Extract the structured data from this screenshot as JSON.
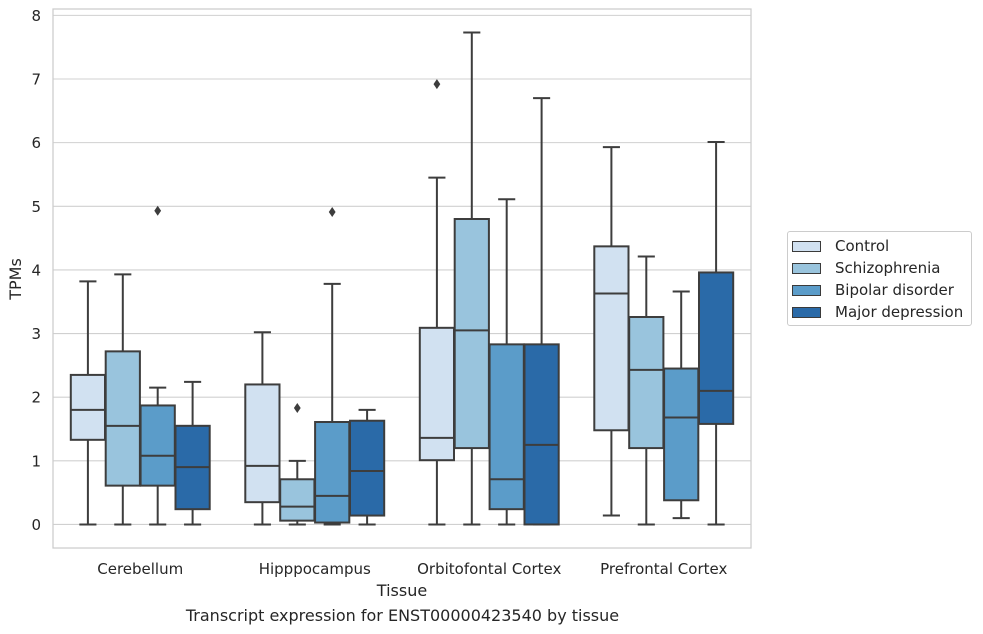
{
  "chart_data": {
    "type": "boxplot",
    "xlabel": "Tissue",
    "ylabel": "TPMs",
    "caption": "Transcript expression for ENST00000423540 by tissue",
    "ylim": [
      -0.37,
      8.1
    ],
    "yticks": [
      0,
      1,
      2,
      3,
      4,
      5,
      6,
      7,
      8
    ],
    "grid": "horizontal",
    "legend_position": "right",
    "categories": [
      "Cerebellum",
      "Hipppocampus",
      "Orbitofontal Cortex",
      "Prefrontal Cortex"
    ],
    "series": [
      {
        "name": "Control",
        "color": "#d1e1f1",
        "boxes": [
          {
            "min": 0,
            "q1": 1.33,
            "median": 1.8,
            "q3": 2.35,
            "max": 3.82,
            "outliers": []
          },
          {
            "min": 0,
            "q1": 0.35,
            "median": 0.92,
            "q3": 2.2,
            "max": 3.02,
            "outliers": []
          },
          {
            "min": 0,
            "q1": 1.01,
            "median": 1.36,
            "q3": 3.09,
            "max": 5.45,
            "outliers": [
              6.92
            ]
          },
          {
            "min": 0.14,
            "q1": 1.48,
            "median": 3.63,
            "q3": 4.37,
            "max": 5.93,
            "outliers": []
          }
        ]
      },
      {
        "name": "Schizophrenia",
        "color": "#99c4dd",
        "boxes": [
          {
            "min": 0,
            "q1": 0.61,
            "median": 1.55,
            "q3": 2.72,
            "max": 3.93,
            "outliers": []
          },
          {
            "min": 0,
            "q1": 0.06,
            "median": 0.28,
            "q3": 0.71,
            "max": 1.0,
            "outliers": [
              1.83
            ]
          },
          {
            "min": 0,
            "q1": 1.2,
            "median": 3.05,
            "q3": 4.8,
            "max": 7.73,
            "outliers": []
          },
          {
            "min": 0,
            "q1": 1.2,
            "median": 2.43,
            "q3": 3.26,
            "max": 4.21,
            "outliers": []
          }
        ]
      },
      {
        "name": "Bipolar disorder",
        "color": "#5b9cc9",
        "boxes": [
          {
            "min": 0,
            "q1": 0.61,
            "median": 1.08,
            "q3": 1.87,
            "max": 2.15,
            "outliers": [
              4.93
            ]
          },
          {
            "min": 0,
            "q1": 0.03,
            "median": 0.45,
            "q3": 1.61,
            "max": 3.78,
            "outliers": [
              4.91
            ]
          },
          {
            "min": 0,
            "q1": 0.24,
            "median": 0.71,
            "q3": 2.83,
            "max": 5.11,
            "outliers": []
          },
          {
            "min": 0.1,
            "q1": 0.38,
            "median": 1.68,
            "q3": 2.45,
            "max": 3.66,
            "outliers": []
          }
        ]
      },
      {
        "name": "Major depression",
        "color": "#2a6aa8",
        "boxes": [
          {
            "min": 0,
            "q1": 0.24,
            "median": 0.9,
            "q3": 1.55,
            "max": 2.24,
            "outliers": []
          },
          {
            "min": 0,
            "q1": 0.14,
            "median": 0.84,
            "q3": 1.63,
            "max": 1.8,
            "outliers": []
          },
          {
            "min": 0,
            "q1": 0,
            "median": 1.25,
            "q3": 2.83,
            "max": 6.7,
            "outliers": []
          },
          {
            "min": 0,
            "q1": 1.58,
            "median": 2.1,
            "q3": 3.96,
            "max": 6.01,
            "outliers": []
          }
        ]
      }
    ]
  }
}
